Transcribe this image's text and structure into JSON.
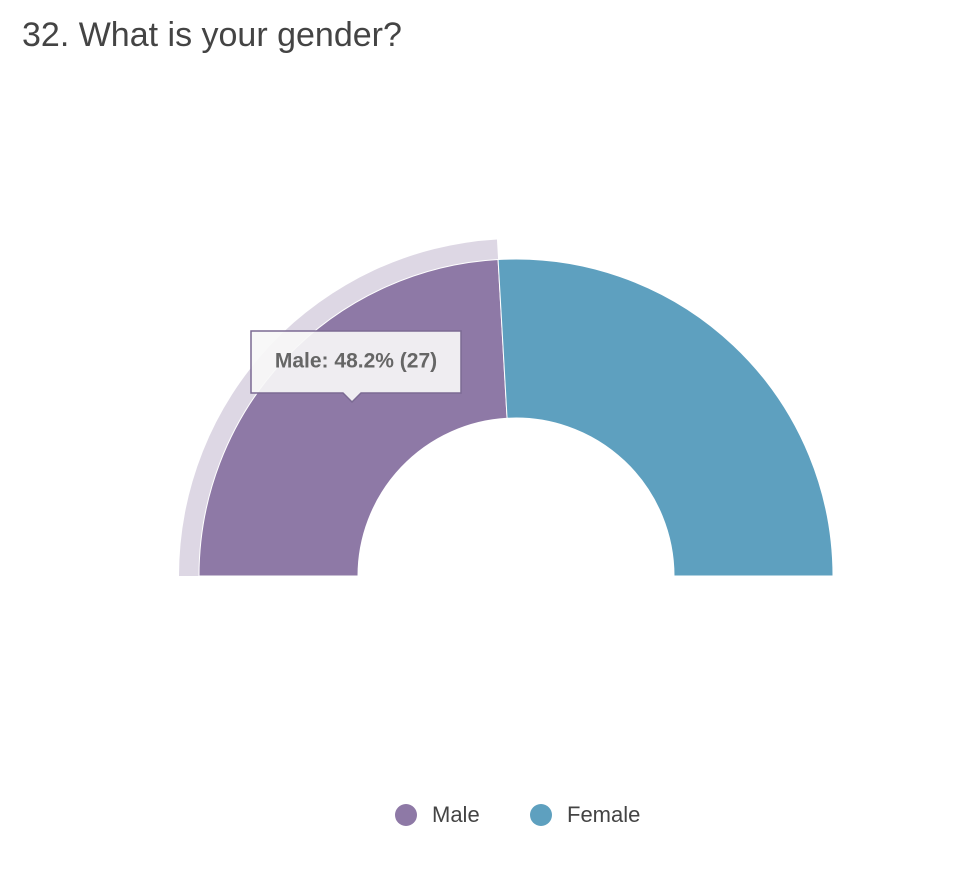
{
  "chart_data": {
    "type": "semi-donut",
    "title": "32. What is your gender?",
    "categories": [
      "Male",
      "Female"
    ],
    "series": [
      {
        "name": "Male",
        "color": "#8e79a6"
      },
      {
        "name": "Female",
        "color": "#5ea0bf"
      }
    ],
    "values": [
      48.2,
      51.8
    ],
    "tooltip": "Male: 48.2% (27)"
  }
}
